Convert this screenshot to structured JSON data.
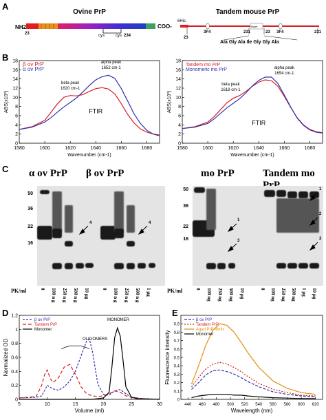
{
  "panel_a": {
    "letter": "A",
    "ovine_title": "Ovine PrP",
    "ovine_nh2": "NH2",
    "ovine_start": "23",
    "ovine_cys1": "cys",
    "ovine_cys2": "cys",
    "ovine_end_num": "234",
    "ovine_coo": "COO-",
    "tandem_title": "Tandem mouse PrP",
    "tandem_his": "6His",
    "tandem_nums": [
      "23",
      "231",
      "23",
      "231"
    ],
    "tandem_3f4": [
      "3F4",
      "3F4"
    ],
    "tandem_linker_box": "linker",
    "tandem_linker_seq": "Ala Gly Ala Ile Gly Gly Ala"
  },
  "panel_b": {
    "letter": "B",
    "left_xlabel": "Wavenumber (cm-1)",
    "left_ylabel": "ABS(x10³)",
    "right_xlabel": "Wavenumber (cm-1)",
    "right_ylabel": "ABS(x10³)",
    "left_ftir": "FTIR",
    "right_ftir": "FTIR",
    "left_alpha": "alpha peak at 1652 cm-1",
    "left_beta": "beta peak at 1620 cm-1",
    "right_alpha": "alpha peak at 1654 cm-1",
    "right_beta": "beta peak at 1618 cm-1"
  },
  "panel_c": {
    "letter": "C",
    "alpha_title": "α ov PrP",
    "beta_title": "β ov PrP",
    "mo_title": "mo PrP",
    "tandem_title": "Tandem mo PrP",
    "mw_markers_left": [
      "50",
      "36",
      "22",
      "16"
    ],
    "mw_markers_right": [
      "50",
      "36",
      "22",
      "16"
    ],
    "pk_label": "PK/ml",
    "lanes_left": [
      "0",
      "100 n g",
      "250 n g",
      "500 n g",
      "10 µg"
    ],
    "lanes_mid": [
      "0",
      "100 n g",
      "250 n g",
      "500 n g",
      "1 µg"
    ],
    "lanes_right_a": [
      "0",
      "100 ng",
      "250 ng",
      "500 ng",
      "10 µg"
    ],
    "lanes_right_b": [
      "0",
      "100 ng",
      "250 ng",
      "500 ng",
      "1 µg",
      "10 µg"
    ],
    "arrow_labels_left": [
      "4",
      "4"
    ],
    "arrow_labels_right": [
      "1",
      "3",
      "1",
      "2",
      "3"
    ]
  },
  "panel_d": {
    "letter": "D",
    "ylabel": "Normalized OD",
    "xlabel": "Volume (ml)",
    "oligomers_label": "OLIGOMERS",
    "monomer_label": "MONOMER"
  },
  "panel_e": {
    "letter": "E",
    "ylabel": "Fluorescence intensity",
    "xlabel": "Wavelength (nm)"
  },
  "chart_data": [
    {
      "id": "B-left",
      "type": "line",
      "xlabel": "Wavenumber (cm-1)",
      "ylabel": "ABS(x10³)",
      "xlim": [
        1580,
        1690
      ],
      "ylim": [
        0,
        18
      ],
      "x_ticks": [
        1580,
        1600,
        1620,
        1640,
        1660,
        1680
      ],
      "y_ticks": [
        0,
        2,
        4,
        6,
        8,
        10,
        12,
        14,
        16,
        18
      ],
      "legend_position": "top-left",
      "series": [
        {
          "name": "β ov PrP",
          "color": "#d42020",
          "x": [
            1580,
            1590,
            1600,
            1605,
            1610,
            1615,
            1620,
            1625,
            1630,
            1635,
            1640,
            1645,
            1650,
            1655,
            1660,
            1665,
            1670,
            1675,
            1680,
            1685,
            1690
          ],
          "y": [
            3.0,
            3.6,
            5.0,
            6.8,
            8.6,
            10.0,
            10.4,
            10.3,
            10.6,
            11.3,
            11.9,
            12.1,
            11.8,
            10.7,
            8.6,
            6.3,
            4.4,
            3.1,
            2.4,
            2.0,
            1.8
          ]
        },
        {
          "name": "α ov PrP",
          "color": "#3030b0",
          "x": [
            1580,
            1590,
            1600,
            1605,
            1610,
            1615,
            1620,
            1625,
            1630,
            1635,
            1640,
            1645,
            1650,
            1655,
            1660,
            1665,
            1670,
            1675,
            1680,
            1685,
            1690
          ],
          "y": [
            3.0,
            3.5,
            4.6,
            5.6,
            6.8,
            7.9,
            8.9,
            9.9,
            11.2,
            12.6,
            13.8,
            14.5,
            14.8,
            14.1,
            11.9,
            9.2,
            6.4,
            4.3,
            2.8,
            2.0,
            1.6
          ]
        }
      ]
    },
    {
      "id": "B-right",
      "type": "line",
      "xlabel": "Wavenumber (cm-1)",
      "ylabel": "ABS(x10³)",
      "xlim": [
        1580,
        1690
      ],
      "ylim": [
        0,
        18
      ],
      "x_ticks": [
        1580,
        1600,
        1620,
        1640,
        1660,
        1680
      ],
      "y_ticks": [
        0,
        2,
        4,
        6,
        8,
        10,
        12,
        14,
        16,
        18
      ],
      "legend_position": "top-left",
      "series": [
        {
          "name": "Tandem mo PrP",
          "color": "#d42020",
          "x": [
            1580,
            1590,
            1600,
            1605,
            1610,
            1615,
            1620,
            1625,
            1630,
            1635,
            1640,
            1645,
            1650,
            1655,
            1660,
            1665,
            1670,
            1675,
            1680,
            1685,
            1690
          ],
          "y": [
            3.2,
            3.6,
            4.6,
            5.8,
            7.3,
            8.8,
            9.8,
            10.4,
            11.3,
            12.4,
            13.3,
            13.8,
            13.6,
            12.4,
            10.2,
            7.8,
            5.6,
            4.0,
            3.0,
            2.5,
            2.3
          ]
        },
        {
          "name": "Monomeric mo PrP",
          "color": "#3030b0",
          "x": [
            1580,
            1590,
            1600,
            1605,
            1610,
            1615,
            1620,
            1625,
            1630,
            1635,
            1640,
            1645,
            1650,
            1655,
            1660,
            1665,
            1670,
            1675,
            1680,
            1685,
            1690
          ],
          "y": [
            3.2,
            3.5,
            4.3,
            5.3,
            6.5,
            7.7,
            8.7,
            9.7,
            11.0,
            12.5,
            13.7,
            14.4,
            14.4,
            13.0,
            10.5,
            7.9,
            5.5,
            3.9,
            2.9,
            2.4,
            2.2
          ]
        }
      ]
    },
    {
      "id": "D",
      "type": "line",
      "xlabel": "Volume (ml)",
      "ylabel": "Normalized OD",
      "xlim": [
        5,
        30
      ],
      "ylim": [
        0,
        1.2
      ],
      "x_ticks": [
        5,
        10,
        15,
        20,
        25,
        30
      ],
      "y_ticks": [
        0,
        0.2,
        0.4,
        0.6,
        0.8,
        1.0,
        1.2
      ],
      "legend_position": "top-left",
      "series": [
        {
          "name": "β ov PrP",
          "color": "#3030b0",
          "dash": "3,2",
          "x": [
            5,
            8,
            9,
            10,
            11,
            12,
            13,
            14,
            15,
            16,
            17,
            17.5,
            18,
            19,
            20,
            21,
            22,
            23,
            24,
            25,
            27,
            30
          ],
          "y": [
            0.02,
            0.03,
            0.05,
            0.2,
            0.15,
            0.13,
            0.18,
            0.26,
            0.4,
            0.62,
            0.83,
            0.86,
            0.7,
            0.22,
            0.07,
            0.06,
            0.12,
            0.14,
            0.08,
            0.03,
            0.01,
            0.0
          ]
        },
        {
          "name": "Tandem PrP",
          "color": "#d42020",
          "dash": "5,3",
          "x": [
            5,
            8,
            9,
            9.5,
            10,
            10.5,
            11,
            12,
            13,
            14,
            15,
            16,
            17,
            18,
            19,
            20,
            21,
            22,
            23,
            24,
            25,
            27,
            30
          ],
          "y": [
            0.02,
            0.04,
            0.2,
            0.35,
            0.42,
            0.3,
            0.24,
            0.31,
            0.46,
            0.5,
            0.36,
            0.18,
            0.08,
            0.05,
            0.04,
            0.05,
            0.08,
            0.12,
            0.1,
            0.05,
            0.03,
            0.01,
            0.0
          ]
        },
        {
          "name": "Monomer",
          "color": "#000000",
          "dash": "",
          "x": [
            5,
            15,
            18,
            20,
            21,
            21.5,
            22,
            22.5,
            23,
            23.5,
            24,
            25,
            26,
            30
          ],
          "y": [
            0.0,
            0.0,
            0.0,
            0.02,
            0.1,
            0.45,
            0.88,
            1.02,
            0.9,
            0.55,
            0.18,
            0.03,
            0.01,
            0.0
          ]
        }
      ]
    },
    {
      "id": "E",
      "type": "line",
      "xlabel": "Wavelength (nm)",
      "ylabel": "Fluorescence intensity",
      "xlim": [
        430,
        630
      ],
      "ylim": [
        0,
        1.0
      ],
      "x_ticks": [
        440,
        460,
        480,
        500,
        520,
        540,
        560,
        580,
        600,
        620
      ],
      "y_ticks": [
        0,
        0.1,
        0.2,
        0.3,
        0.4,
        0.5,
        0.6,
        0.7,
        0.8,
        0.9
      ],
      "legend_position": "top-left",
      "series": [
        {
          "name": "β ov PrP",
          "color": "#3030b0",
          "dash": "4,2",
          "x": [
            445,
            455,
            465,
            475,
            485,
            495,
            505,
            515,
            525,
            540,
            560,
            580,
            600,
            620
          ],
          "y": [
            0.12,
            0.2,
            0.29,
            0.34,
            0.35,
            0.33,
            0.3,
            0.26,
            0.21,
            0.15,
            0.09,
            0.06,
            0.04,
            0.03
          ]
        },
        {
          "name": "Tandem PrP",
          "color": "#d42020",
          "dash": "2,2",
          "x": [
            445,
            455,
            465,
            475,
            485,
            495,
            505,
            515,
            525,
            540,
            560,
            580,
            600,
            620
          ],
          "y": [
            0.15,
            0.26,
            0.36,
            0.42,
            0.44,
            0.42,
            0.38,
            0.33,
            0.27,
            0.19,
            0.12,
            0.08,
            0.05,
            0.04
          ]
        },
        {
          "name": "Aged PrP fibrils",
          "color": "#e0900a",
          "dash": "",
          "x": [
            445,
            455,
            465,
            475,
            485,
            495,
            505,
            515,
            525,
            540,
            560,
            580,
            600,
            620
          ],
          "y": [
            0.18,
            0.4,
            0.64,
            0.82,
            0.9,
            0.88,
            0.8,
            0.68,
            0.55,
            0.38,
            0.22,
            0.13,
            0.08,
            0.06
          ]
        },
        {
          "name": "Monomer",
          "color": "#000000",
          "dash": "",
          "x": [
            445,
            455,
            465,
            475,
            485,
            495,
            505,
            515,
            525,
            540,
            560,
            580,
            600,
            620
          ],
          "y": [
            0.02,
            0.04,
            0.05,
            0.06,
            0.06,
            0.06,
            0.05,
            0.05,
            0.04,
            0.03,
            0.02,
            0.015,
            0.01,
            0.01
          ]
        }
      ]
    }
  ]
}
